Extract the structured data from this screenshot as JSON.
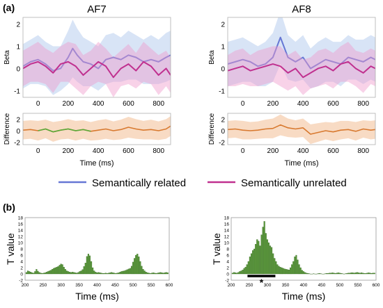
{
  "panel_labels": {
    "a": "(a)",
    "b": "(b)"
  },
  "legend": {
    "related": {
      "label": "Semantically related",
      "color": "#6677d4"
    },
    "unrelated": {
      "label": "Semantically unrelated",
      "color": "#c0308f"
    }
  },
  "colors": {
    "related_fill": "#a9c3ea",
    "unrelated_fill": "#ef9ccc",
    "diff_line": "#d8792f",
    "diff_fill": "#f6d2b5",
    "diff_segment_af7": "#5aaa3a",
    "bar_fill": "#5a9a39",
    "bar_edge": "#2e5f1d",
    "sig_bar": "#000000"
  },
  "chart_data": [
    {
      "id": "af7-beta",
      "type": "line",
      "title": "AF7",
      "xlabel": "",
      "ylabel": "Beta",
      "xlim": [
        -100,
        880
      ],
      "ylim": [
        -1.3,
        2.3
      ],
      "x_ticks": [
        0,
        200,
        400,
        600,
        800
      ],
      "y_ticks": [
        -1,
        0,
        1,
        2
      ],
      "series": [
        {
          "name": "Semantically related",
          "x": [
            -100,
            -50,
            0,
            50,
            100,
            150,
            200,
            230,
            260,
            300,
            350,
            400,
            450,
            500,
            550,
            600,
            650,
            700,
            750,
            800,
            850,
            880
          ],
          "y": [
            0.1,
            0.3,
            0.4,
            0.2,
            -0.1,
            0.0,
            0.5,
            0.9,
            0.6,
            0.3,
            0.2,
            0.0,
            0.4,
            0.5,
            0.4,
            0.6,
            0.5,
            0.3,
            0.4,
            0.3,
            0.5,
            0.6
          ],
          "band": [
            1.0,
            1.0,
            1.1,
            1.0,
            1.1,
            1.0,
            1.2,
            1.3,
            1.2,
            1.1,
            1.0,
            1.0,
            1.1,
            1.1,
            1.0,
            1.1,
            1.0,
            1.0,
            1.1,
            1.0,
            1.1,
            1.1
          ]
        },
        {
          "name": "Semantically unrelated",
          "x": [
            -100,
            -50,
            0,
            50,
            100,
            150,
            200,
            250,
            300,
            350,
            400,
            450,
            500,
            550,
            600,
            650,
            700,
            750,
            800,
            850,
            880
          ],
          "y": [
            0.0,
            0.2,
            0.3,
            0.1,
            -0.2,
            0.2,
            0.3,
            0.1,
            -0.3,
            0.0,
            0.3,
            0.1,
            -0.4,
            0.0,
            0.2,
            -0.1,
            0.3,
            0.1,
            -0.3,
            0.0,
            -0.3
          ],
          "band": [
            0.8,
            0.8,
            0.9,
            0.8,
            0.9,
            0.8,
            0.9,
            1.0,
            0.9,
            0.8,
            0.9,
            0.8,
            0.9,
            0.8,
            0.9,
            0.8,
            0.9,
            0.8,
            0.9,
            0.8,
            0.8
          ]
        }
      ]
    },
    {
      "id": "af8-beta",
      "type": "line",
      "title": "AF8",
      "xlabel": "",
      "ylabel": "Beta",
      "xlim": [
        -100,
        880
      ],
      "ylim": [
        -1.3,
        2.3
      ],
      "x_ticks": [
        0,
        200,
        400,
        600,
        800
      ],
      "y_ticks": [
        -1,
        0,
        1,
        2
      ],
      "series": [
        {
          "name": "Semantically related",
          "x": [
            -100,
            -50,
            0,
            50,
            100,
            150,
            200,
            250,
            300,
            350,
            400,
            450,
            500,
            550,
            600,
            650,
            700,
            750,
            800,
            850,
            880
          ],
          "y": [
            0.2,
            0.3,
            0.4,
            0.3,
            0.1,
            0.2,
            0.5,
            1.4,
            0.5,
            0.3,
            0.5,
            0.0,
            0.2,
            0.4,
            0.3,
            0.2,
            0.5,
            0.4,
            0.3,
            0.5,
            0.4
          ],
          "band": [
            1.0,
            1.0,
            1.0,
            0.9,
            0.9,
            1.0,
            1.1,
            1.2,
            1.0,
            0.9,
            1.0,
            0.9,
            1.0,
            1.0,
            0.9,
            1.0,
            1.0,
            0.9,
            1.0,
            1.0,
            1.0
          ]
        },
        {
          "name": "Semantically unrelated",
          "x": [
            -100,
            -50,
            0,
            50,
            100,
            150,
            200,
            250,
            300,
            350,
            400,
            450,
            500,
            550,
            600,
            650,
            700,
            750,
            800,
            850,
            880
          ],
          "y": [
            -0.1,
            0.0,
            0.1,
            -0.1,
            0.0,
            0.1,
            0.2,
            0.1,
            -0.2,
            0.0,
            -0.4,
            -0.2,
            0.0,
            0.1,
            -0.1,
            0.2,
            0.3,
            0.0,
            -0.2,
            0.1,
            0.0
          ],
          "band": [
            0.7,
            0.8,
            0.8,
            0.7,
            0.8,
            0.8,
            0.8,
            0.9,
            0.8,
            0.8,
            0.8,
            0.7,
            0.8,
            0.8,
            0.8,
            0.8,
            0.9,
            0.8,
            0.9,
            0.8,
            0.8
          ]
        }
      ]
    },
    {
      "id": "af7-diff",
      "type": "line",
      "xlabel": "Time (ms)",
      "ylabel": "Difference",
      "xlim": [
        -100,
        880
      ],
      "ylim": [
        -2.4,
        3.0
      ],
      "x_ticks": [
        0,
        200,
        400,
        600,
        800
      ],
      "y_ticks": [
        -2,
        0,
        2
      ],
      "series": [
        {
          "x": [
            -100,
            -50,
            0,
            50,
            100,
            150,
            200,
            250,
            300,
            350,
            400,
            450,
            500,
            550,
            600,
            650,
            700,
            750,
            800,
            850,
            880
          ],
          "y": [
            0.1,
            0.2,
            0.0,
            0.3,
            -0.2,
            0.1,
            0.3,
            0.0,
            0.2,
            -0.1,
            0.1,
            0.3,
            0.0,
            0.2,
            0.6,
            0.3,
            0.1,
            0.2,
            0.0,
            0.3,
            0.8
          ],
          "band": [
            1.6,
            1.6,
            1.7,
            1.6,
            1.7,
            1.6,
            1.7,
            1.7,
            1.6,
            1.6,
            1.7,
            1.7,
            1.6,
            1.7,
            1.8,
            1.7,
            1.6,
            1.7,
            1.6,
            1.7,
            1.7
          ]
        }
      ]
    },
    {
      "id": "af8-diff",
      "type": "line",
      "xlabel": "Time (ms)",
      "ylabel": "Difference",
      "xlim": [
        -100,
        880
      ],
      "ylim": [
        -2.4,
        3.0
      ],
      "x_ticks": [
        0,
        200,
        400,
        600,
        800
      ],
      "y_ticks": [
        -2,
        0,
        2
      ],
      "series": [
        {
          "x": [
            -100,
            -50,
            0,
            50,
            100,
            150,
            200,
            250,
            300,
            350,
            400,
            450,
            500,
            550,
            600,
            650,
            700,
            750,
            800,
            850,
            880
          ],
          "y": [
            0.2,
            0.3,
            0.1,
            0.0,
            0.1,
            0.3,
            0.4,
            1.0,
            0.5,
            0.3,
            0.5,
            -0.6,
            -0.3,
            0.0,
            -0.2,
            0.1,
            0.2,
            -0.1,
            0.3,
            0.1,
            0.2
          ],
          "band": [
            1.5,
            1.5,
            1.6,
            1.5,
            1.5,
            1.6,
            1.7,
            1.8,
            1.6,
            1.5,
            1.6,
            1.7,
            1.6,
            1.5,
            1.6,
            1.6,
            1.5,
            1.6,
            1.5,
            1.6,
            1.6
          ]
        }
      ]
    },
    {
      "id": "af7-tvalue",
      "type": "bar",
      "xlabel": "Time (ms)",
      "ylabel": "T value",
      "xlim": [
        200,
        600
      ],
      "ylim": [
        -2,
        18
      ],
      "x_ticks": [
        200,
        250,
        300,
        350,
        400,
        450,
        500,
        550,
        600
      ],
      "y_ticks": [
        -2,
        0,
        2,
        4,
        6,
        8,
        10,
        12,
        14,
        16,
        18
      ],
      "bin_width": 4,
      "x": [
        204,
        208,
        212,
        216,
        220,
        224,
        228,
        232,
        236,
        240,
        244,
        248,
        252,
        256,
        260,
        264,
        268,
        272,
        276,
        280,
        284,
        288,
        292,
        296,
        300,
        304,
        308,
        312,
        316,
        320,
        324,
        328,
        332,
        336,
        340,
        344,
        348,
        352,
        356,
        360,
        364,
        368,
        372,
        376,
        380,
        384,
        388,
        392,
        396,
        400,
        404,
        408,
        412,
        416,
        420,
        424,
        428,
        432,
        436,
        440,
        444,
        448,
        452,
        456,
        460,
        464,
        468,
        472,
        476,
        480,
        484,
        488,
        492,
        496,
        500,
        504,
        508,
        512,
        516,
        520,
        524,
        528,
        532,
        536,
        540,
        544,
        548,
        552,
        556,
        560,
        564,
        568,
        572,
        576,
        580,
        584,
        588,
        592,
        596
      ],
      "values": [
        0.5,
        1.0,
        0.8,
        0.6,
        0.4,
        0.3,
        0.8,
        1.5,
        0.9,
        0.5,
        0.3,
        0.2,
        0.3,
        0.4,
        0.6,
        0.8,
        1.0,
        1.2,
        1.5,
        1.8,
        2.0,
        2.2,
        2.4,
        2.8,
        3.2,
        3.0,
        2.2,
        1.5,
        1.0,
        0.8,
        0.6,
        0.5,
        0.6,
        0.5,
        0.4,
        0.3,
        0.5,
        0.8,
        1.0,
        1.4,
        2.4,
        3.5,
        5.6,
        6.4,
        5.8,
        4.0,
        2.0,
        1.0,
        0.6,
        0.4,
        0.5,
        0.4,
        0.3,
        0.2,
        0.2,
        0.3,
        0.2,
        0.3,
        0.4,
        0.5,
        0.4,
        0.3,
        0.2,
        0.3,
        0.4,
        0.6,
        0.8,
        0.9,
        1.0,
        1.2,
        1.4,
        1.6,
        1.8,
        2.5,
        3.8,
        5.0,
        6.0,
        6.4,
        5.5,
        4.0,
        2.5,
        1.5,
        1.0,
        0.6,
        0.4,
        0.3,
        0.2,
        0.3,
        0.4,
        0.3,
        0.2,
        0.3,
        0.4,
        0.5,
        0.4,
        0.3,
        0.4,
        0.5,
        0.4
      ]
    },
    {
      "id": "af8-tvalue",
      "type": "bar",
      "xlabel": "Time (ms)",
      "ylabel": "T value",
      "xlim": [
        200,
        600
      ],
      "ylim": [
        -2,
        18
      ],
      "x_ticks": [
        200,
        250,
        300,
        350,
        400,
        450,
        500,
        550,
        600
      ],
      "y_ticks": [
        -2,
        0,
        2,
        4,
        6,
        8,
        10,
        12,
        14,
        16,
        18
      ],
      "bin_width": 4,
      "x": [
        204,
        208,
        212,
        216,
        220,
        224,
        228,
        232,
        236,
        240,
        244,
        248,
        252,
        256,
        260,
        264,
        268,
        272,
        276,
        280,
        284,
        288,
        292,
        296,
        300,
        304,
        308,
        312,
        316,
        320,
        324,
        328,
        332,
        336,
        340,
        344,
        348,
        352,
        356,
        360,
        364,
        368,
        372,
        376,
        380,
        384,
        388,
        392,
        396,
        400,
        404,
        408,
        412,
        416,
        420,
        424,
        428,
        432,
        436,
        440,
        444,
        448,
        452,
        456,
        460,
        464,
        468,
        472,
        476,
        480,
        484,
        488,
        492,
        496,
        500,
        504,
        508,
        512,
        516,
        520,
        524,
        528,
        532,
        536,
        540,
        544,
        548,
        552,
        556,
        560,
        564,
        568,
        572,
        576,
        580,
        584,
        588,
        592,
        596
      ],
      "values": [
        0.3,
        0.5,
        0.4,
        0.3,
        0.5,
        0.8,
        1.0,
        1.3,
        1.8,
        2.2,
        3.0,
        4.0,
        5.5,
        6.5,
        7.5,
        8.0,
        9.5,
        11.0,
        10.5,
        9.0,
        12.5,
        15.0,
        16.8,
        13.0,
        11.0,
        10.0,
        9.0,
        8.5,
        6.5,
        5.0,
        4.0,
        3.0,
        2.5,
        2.2,
        2.0,
        1.8,
        1.6,
        1.5,
        1.4,
        1.3,
        2.0,
        3.0,
        4.0,
        5.5,
        6.0,
        4.5,
        3.0,
        2.0,
        1.2,
        0.8,
        0.5,
        0.3,
        0.2,
        0.1,
        0.0,
        0.0,
        0.1,
        0.0,
        0.0,
        0.1,
        0.2,
        0.1,
        0.0,
        0.0,
        0.1,
        0.2,
        0.2,
        0.3,
        0.3,
        0.4,
        0.3,
        0.2,
        0.3,
        0.4,
        0.3,
        0.2,
        0.1,
        0.0,
        0.1,
        0.2,
        0.3,
        0.3,
        0.4,
        0.4,
        0.3,
        0.4,
        0.5,
        0.4,
        0.3,
        0.4,
        0.3,
        0.2,
        0.2,
        0.3,
        0.4,
        0.3,
        0.2,
        0.3,
        0.3
      ],
      "significance": {
        "from": 245,
        "to": 322,
        "marker": "*"
      }
    }
  ]
}
